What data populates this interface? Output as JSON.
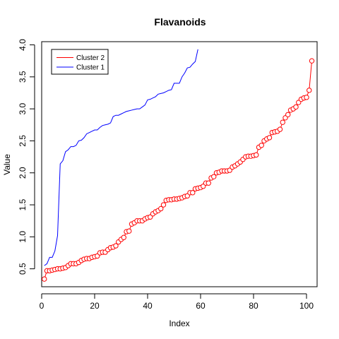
{
  "chart_data": {
    "type": "line",
    "title": "Flavanoids",
    "xlabel": "Index",
    "ylabel": "Value",
    "xlim": [
      0,
      104
    ],
    "ylim": [
      0.22,
      4.05
    ],
    "xticks": [
      0,
      20,
      40,
      60,
      80,
      100
    ],
    "yticks": [
      0.5,
      1.0,
      1.5,
      2.0,
      2.5,
      3.0,
      3.5,
      4.0
    ],
    "xtick_labels": [
      "0",
      "20",
      "40",
      "60",
      "80",
      "100"
    ],
    "ytick_labels": [
      "0.5",
      "1.0",
      "1.5",
      "2.0",
      "2.5",
      "3.0",
      "3.5",
      "4.0"
    ],
    "legend_position": "top-left",
    "legend": [
      {
        "label": "Cluster 2",
        "color": "#ff0000"
      },
      {
        "label": "Cluster 1",
        "color": "#0000ff"
      }
    ],
    "series": [
      {
        "name": "Cluster 1",
        "style": "line",
        "color": "#0000ff",
        "x": [
          1,
          2,
          3,
          4,
          5,
          6,
          7,
          8,
          9,
          10,
          11,
          12,
          13,
          14,
          15,
          16,
          17,
          18,
          19,
          20,
          21,
          22,
          23,
          24,
          25,
          26,
          27,
          28,
          29,
          30,
          31,
          32,
          33,
          34,
          35,
          36,
          37,
          38,
          39,
          40,
          41,
          42,
          43,
          44,
          45,
          46,
          47,
          48,
          49,
          50,
          51,
          52,
          53,
          54,
          55,
          56,
          57,
          58,
          59
        ],
        "values": [
          0.55,
          0.58,
          0.68,
          0.68,
          0.78,
          1.02,
          2.14,
          2.19,
          2.33,
          2.36,
          2.41,
          2.41,
          2.43,
          2.5,
          2.51,
          2.55,
          2.61,
          2.63,
          2.65,
          2.67,
          2.67,
          2.71,
          2.74,
          2.75,
          2.76,
          2.78,
          2.88,
          2.9,
          2.9,
          2.92,
          2.94,
          2.96,
          2.97,
          2.98,
          2.99,
          3.0,
          3.0,
          3.03,
          3.06,
          3.14,
          3.15,
          3.17,
          3.19,
          3.23,
          3.24,
          3.25,
          3.27,
          3.29,
          3.3,
          3.4,
          3.4,
          3.4,
          3.5,
          3.56,
          3.64,
          3.65,
          3.7,
          3.74,
          3.93
        ]
      },
      {
        "name": "Cluster 2",
        "style": "scatter+line",
        "color": "#ff0000",
        "x": [
          1,
          2,
          3,
          4,
          5,
          6,
          7,
          8,
          9,
          10,
          11,
          12,
          13,
          14,
          15,
          16,
          17,
          18,
          19,
          20,
          21,
          22,
          23,
          24,
          25,
          26,
          27,
          28,
          29,
          30,
          31,
          32,
          33,
          34,
          35,
          36,
          37,
          38,
          39,
          40,
          41,
          42,
          43,
          44,
          45,
          46,
          47,
          48,
          49,
          50,
          51,
          52,
          53,
          54,
          55,
          56,
          57,
          58,
          59,
          60,
          61,
          62,
          63,
          64,
          65,
          66,
          67,
          68,
          69,
          70,
          71,
          72,
          73,
          74,
          75,
          76,
          77,
          78,
          79,
          80,
          81,
          82,
          83,
          84,
          85,
          86,
          87,
          88,
          89,
          90,
          91,
          92,
          93,
          94,
          95,
          96,
          97,
          98,
          99,
          100,
          101,
          102
        ],
        "values": [
          0.34,
          0.47,
          0.47,
          0.48,
          0.49,
          0.5,
          0.5,
          0.51,
          0.52,
          0.55,
          0.58,
          0.58,
          0.58,
          0.6,
          0.63,
          0.65,
          0.66,
          0.66,
          0.68,
          0.69,
          0.7,
          0.75,
          0.76,
          0.76,
          0.8,
          0.83,
          0.84,
          0.86,
          0.92,
          0.96,
          0.99,
          1.08,
          1.09,
          1.2,
          1.22,
          1.25,
          1.25,
          1.25,
          1.28,
          1.3,
          1.31,
          1.36,
          1.39,
          1.41,
          1.44,
          1.5,
          1.57,
          1.58,
          1.58,
          1.59,
          1.59,
          1.6,
          1.61,
          1.63,
          1.64,
          1.69,
          1.69,
          1.75,
          1.76,
          1.77,
          1.79,
          1.84,
          1.84,
          1.92,
          1.94,
          2.0,
          2.01,
          2.03,
          2.03,
          2.03,
          2.04,
          2.09,
          2.11,
          2.14,
          2.17,
          2.21,
          2.25,
          2.26,
          2.26,
          2.27,
          2.28,
          2.4,
          2.43,
          2.5,
          2.53,
          2.55,
          2.63,
          2.64,
          2.65,
          2.68,
          2.79,
          2.86,
          2.91,
          2.98,
          3.0,
          3.03,
          3.1,
          3.15,
          3.17,
          3.18,
          3.29,
          3.75
        ]
      }
    ]
  }
}
